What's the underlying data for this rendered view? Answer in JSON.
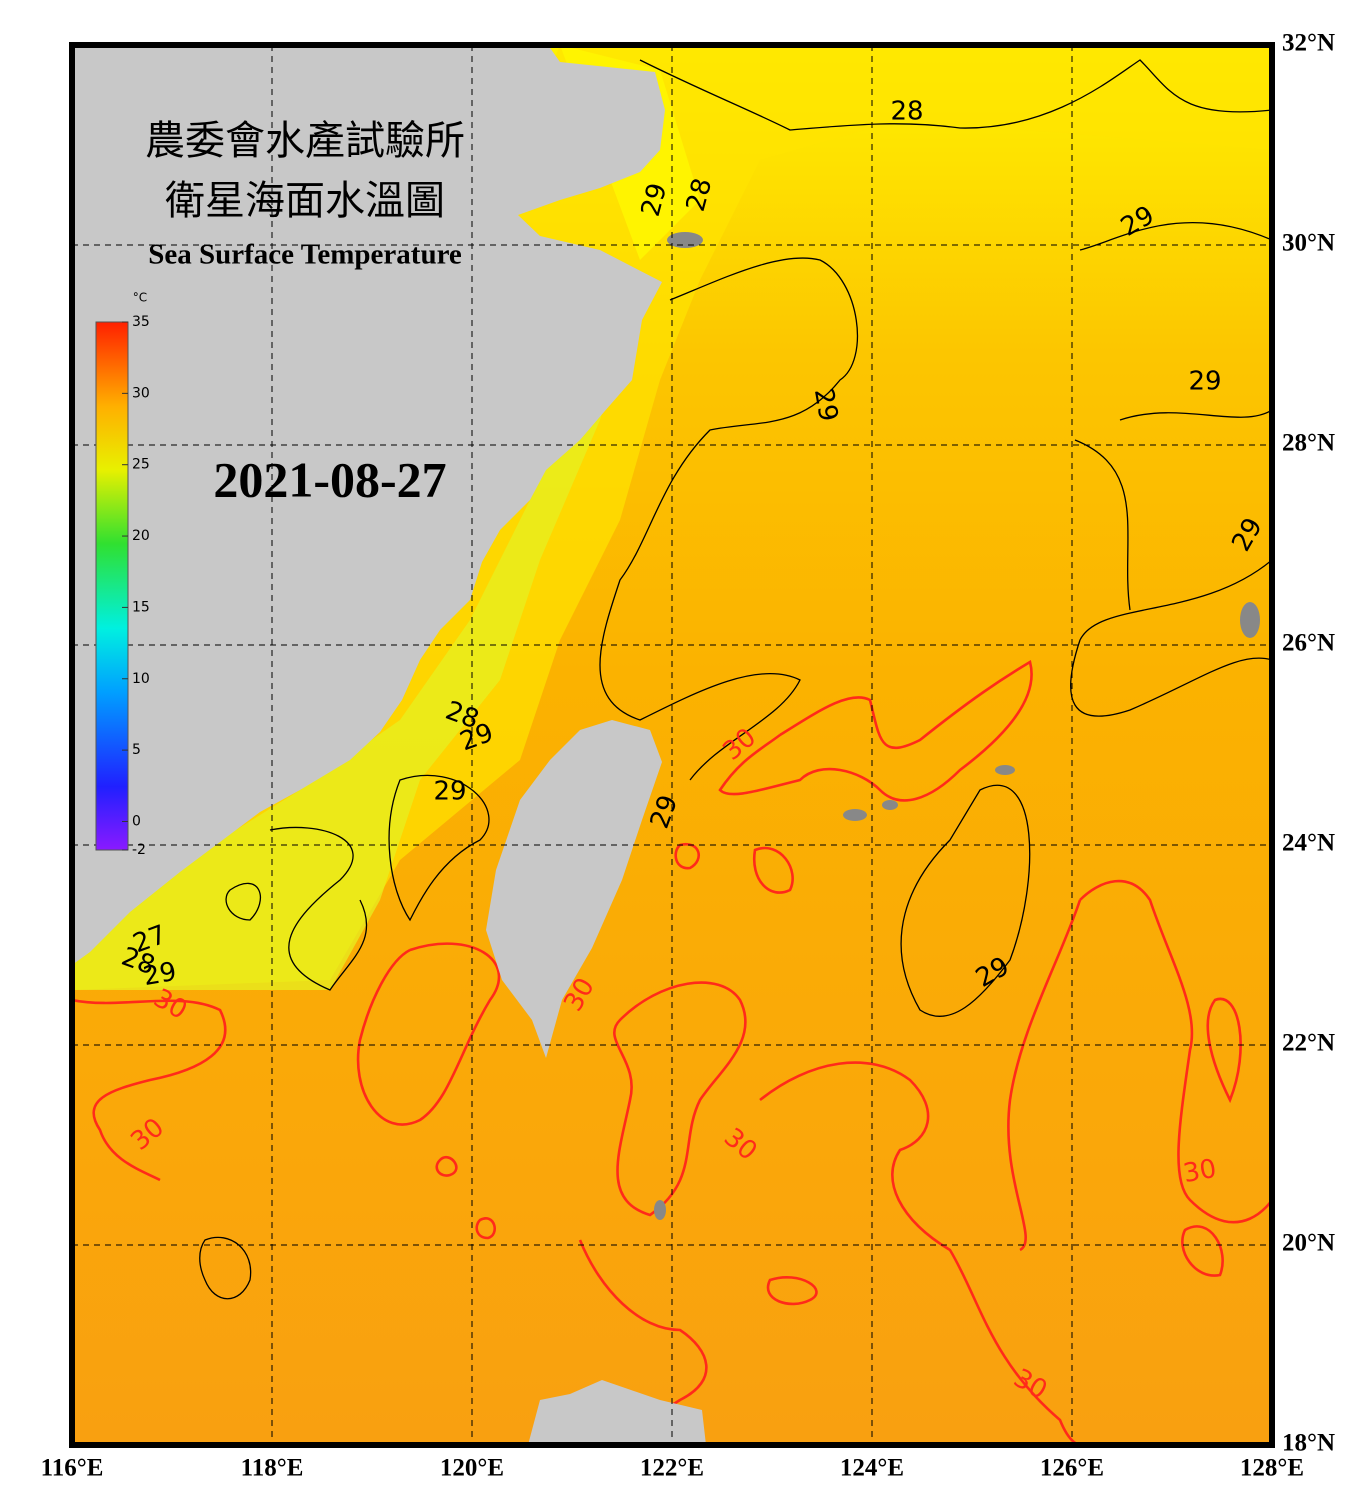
{
  "map": {
    "title_zh": [
      "農委會水產試驗所",
      "衛星海面水溫圖"
    ],
    "title_en": "Sea Surface Temperature",
    "date": "2021-08-27",
    "colorbar": {
      "unit": "°C",
      "lim": [
        -2,
        35
      ],
      "ticks": [
        35,
        30,
        25,
        20,
        15,
        10,
        5,
        0,
        -2
      ]
    },
    "lon_range": [
      116,
      128
    ],
    "lat_range": [
      18,
      32
    ],
    "lon_ticks": [
      {
        "value": 116,
        "label": "116°E"
      },
      {
        "value": 118,
        "label": "118°E"
      },
      {
        "value": 120,
        "label": "120°E"
      },
      {
        "value": 122,
        "label": "122°E"
      },
      {
        "value": 124,
        "label": "124°E"
      },
      {
        "value": 126,
        "label": "126°E"
      },
      {
        "value": 128,
        "label": "128°E"
      }
    ],
    "lat_ticks": [
      {
        "value": 32,
        "label": "32°N"
      },
      {
        "value": 30,
        "label": "30°N"
      },
      {
        "value": 28,
        "label": "28°N"
      },
      {
        "value": 26,
        "label": "26°N"
      },
      {
        "value": 24,
        "label": "24°N"
      },
      {
        "value": 22,
        "label": "22°N"
      },
      {
        "value": 20,
        "label": "20°N"
      },
      {
        "value": 18,
        "label": "18°N"
      }
    ],
    "contour_labels": [
      {
        "value": 28,
        "color": "#000000"
      },
      {
        "value": 29,
        "color": "#000000"
      },
      {
        "value": 28,
        "color": "#000000"
      },
      {
        "value": 29,
        "color": "#000000"
      },
      {
        "value": 29,
        "color": "#000000"
      },
      {
        "value": 29,
        "color": "#000000"
      },
      {
        "value": 29,
        "color": "#000000"
      },
      {
        "value": 28,
        "color": "#000000"
      },
      {
        "value": 29,
        "color": "#000000"
      },
      {
        "value": 29,
        "color": "#000000"
      },
      {
        "value": 29,
        "color": "#000000"
      },
      {
        "value": 27,
        "color": "#000000"
      },
      {
        "value": 28,
        "color": "#000000"
      },
      {
        "value": 29,
        "color": "#000000"
      },
      {
        "value": 29,
        "color": "#000000"
      },
      {
        "value": 30,
        "color": "#ff2a1a"
      },
      {
        "value": 30,
        "color": "#ff2a1a"
      },
      {
        "value": 30,
        "color": "#ff2a1a"
      },
      {
        "value": 30,
        "color": "#ff2a1a"
      },
      {
        "value": 30,
        "color": "#ff2a1a"
      },
      {
        "value": 30,
        "color": "#ff2a1a"
      },
      {
        "value": 30,
        "color": "#ff2a1a"
      }
    ]
  }
}
